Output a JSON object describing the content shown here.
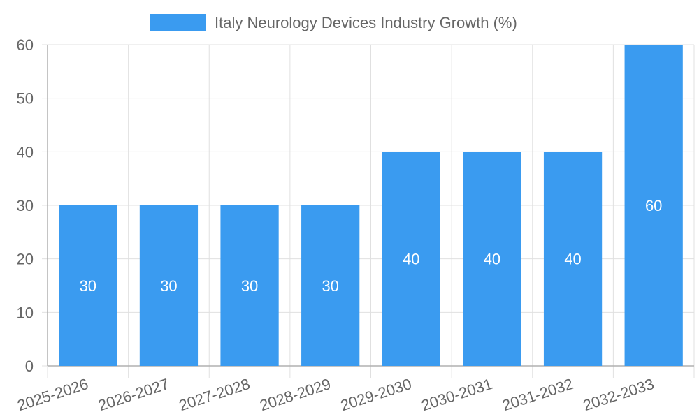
{
  "chart_data": {
    "type": "bar",
    "categories": [
      "2025-2026",
      "2026-2027",
      "2027-2028",
      "2028-2029",
      "2029-2030",
      "2030-2031",
      "2031-2032",
      "2032-2033"
    ],
    "series": [
      {
        "name": "Italy Neurology Devices Industry Growth (%)",
        "values": [
          30,
          30,
          30,
          30,
          40,
          40,
          40,
          60
        ],
        "color": "#3a9bf0"
      }
    ],
    "data_labels": [
      "30",
      "30",
      "30",
      "30",
      "40",
      "40",
      "40",
      "60"
    ],
    "title": "",
    "xlabel": "",
    "ylabel": "",
    "ylim": [
      0,
      60
    ],
    "yticks": [
      0,
      10,
      20,
      30,
      40,
      50,
      60
    ],
    "grid": true,
    "legend_position": "top-center",
    "colors": {
      "grid": "#e0e0e0",
      "axis": "#b0b0b0",
      "text": "#666666",
      "label": "#ffffff"
    }
  }
}
